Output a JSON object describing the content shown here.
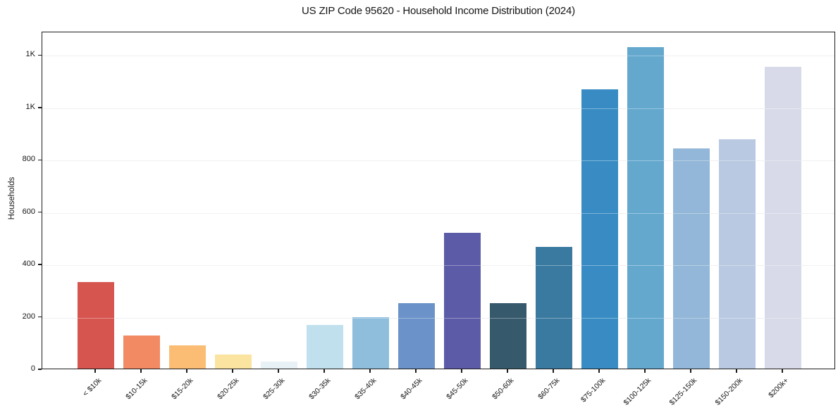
{
  "chart_data": {
    "type": "bar",
    "title": "US ZIP Code 95620 - Household Income Distribution (2024)",
    "xlabel": "",
    "ylabel": "Households",
    "categories": [
      "< $10k",
      "$10-15k",
      "$15-20k",
      "$20-25k",
      "$25-30k",
      "$30-35k",
      "$35-40k",
      "$40-45k",
      "$45-50k",
      "$50-60k",
      "$60-75k",
      "$75-100k",
      "$100-125k",
      "$125-150k",
      "$150-200k",
      "$200k+"
    ],
    "values": [
      331,
      127,
      88,
      53,
      27,
      166,
      196,
      250,
      519,
      250,
      466,
      1068,
      1228,
      841,
      876,
      1152
    ],
    "bar_colors": [
      "#d6554f",
      "#f28a64",
      "#fbbd74",
      "#fae4a0",
      "#e7f1f6",
      "#bfe0ec",
      "#8fbedd",
      "#6b93c9",
      "#5c5ba7",
      "#36596b",
      "#3a7aa0",
      "#388cc3",
      "#64a8ce",
      "#93b7d8",
      "#b9c9e1",
      "#d9dae9"
    ],
    "ylim": [
      0,
      1290
    ],
    "yticks": [
      {
        "value": 0,
        "label": "0"
      },
      {
        "value": 200,
        "label": "200"
      },
      {
        "value": 400,
        "label": "400"
      },
      {
        "value": 600,
        "label": "600"
      },
      {
        "value": 800,
        "label": "800"
      },
      {
        "value": 1000,
        "label": "1K"
      },
      {
        "value": 1200,
        "label": "1K"
      }
    ],
    "grid": "horizontal",
    "legend": "none",
    "background": "#ffffff"
  }
}
